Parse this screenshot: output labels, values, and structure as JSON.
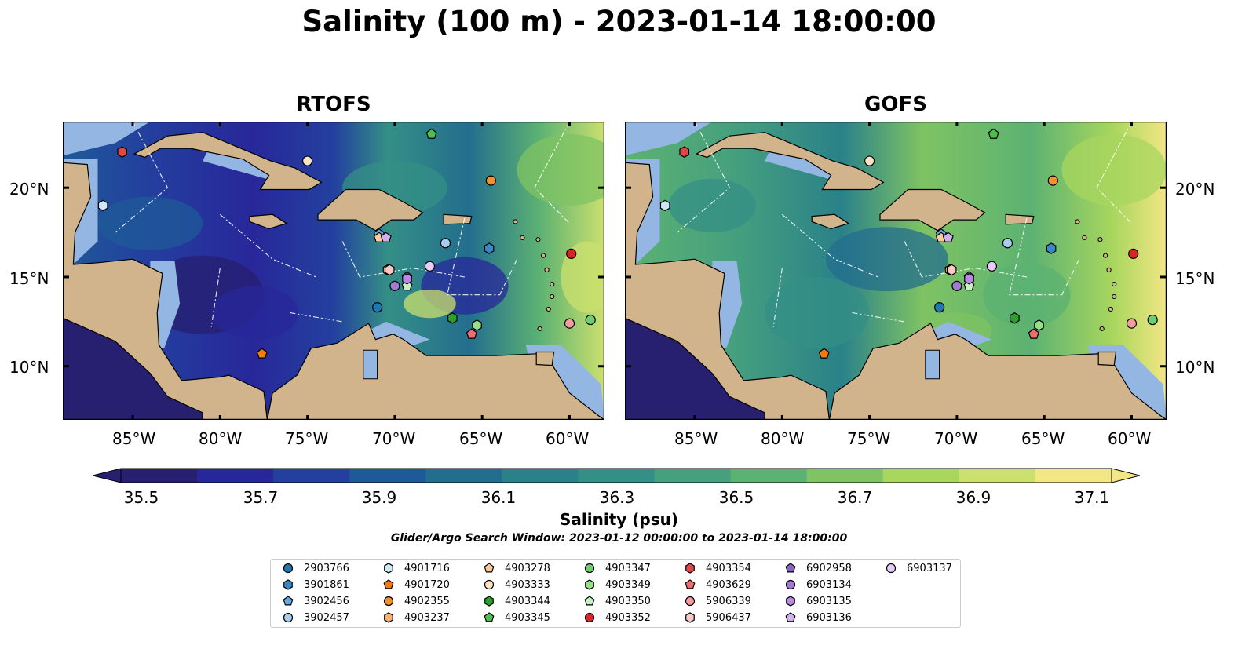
{
  "title": "Salinity (100 m) - 2023-01-14 18:00:00",
  "panels": [
    {
      "title": "RTOFS",
      "style": "rtofs"
    },
    {
      "title": "GOFS",
      "style": "gofs"
    }
  ],
  "lat_labels": [
    "20°N",
    "15°N",
    "10°N"
  ],
  "lon_labels": [
    "85°W",
    "80°W",
    "75°W",
    "70°W",
    "65°W",
    "60°W"
  ],
  "colorbar": {
    "label": "Salinity (psu)",
    "ticks": [
      "35.5",
      "35.7",
      "35.9",
      "36.1",
      "36.3",
      "36.5",
      "36.7",
      "36.9",
      "37.1"
    ],
    "colors": [
      "#271f6f",
      "#28279a",
      "#23409e",
      "#1f5a98",
      "#236e8e",
      "#2a8189",
      "#348f86",
      "#46a07e",
      "#5cb272",
      "#7fc363",
      "#a8d65e",
      "#cbe06e",
      "#f3e685"
    ],
    "extend": "both"
  },
  "search_window": "Glider/Argo Search Window: 2023-01-12 00:00:00 to 2023-01-14 18:00:00",
  "map_colors": {
    "land": "#d2b48c",
    "shallow": "#94b6e2",
    "deep_pacific": "#271f6f"
  },
  "floats": [
    {
      "id": "2903766",
      "marker": "circle",
      "color": "#1f77b4",
      "lon": -71.0,
      "lat": 13.3
    },
    {
      "id": "3901861",
      "marker": "hexagon",
      "color": "#3a87c8",
      "lon": -64.6,
      "lat": 16.6
    },
    {
      "id": "3902456",
      "marker": "pentagon",
      "color": "#64a9e0",
      "lon": -70.9,
      "lat": 17.4
    },
    {
      "id": "3902457",
      "marker": "circle",
      "color": "#a6cdf0",
      "lon": -67.1,
      "lat": 16.9
    },
    {
      "id": "4901716",
      "marker": "hexagon",
      "color": "#cfe8f8",
      "lon": -86.7,
      "lat": 19.0
    },
    {
      "id": "4901720",
      "marker": "pentagon",
      "color": "#f07b10",
      "lon": -77.6,
      "lat": 10.7
    },
    {
      "id": "4902355",
      "marker": "circle",
      "color": "#f5922f",
      "lon": -64.5,
      "lat": 20.4
    },
    {
      "id": "4903237",
      "marker": "hexagon",
      "color": "#f8b173",
      "lon": -70.4,
      "lat": 15.4
    },
    {
      "id": "4903278",
      "marker": "pentagon",
      "color": "#fbc99a",
      "lon": -70.9,
      "lat": 17.2
    },
    {
      "id": "4903333",
      "marker": "circle",
      "color": "#fde3c5",
      "lon": -75.0,
      "lat": 21.5
    },
    {
      "id": "4903344",
      "marker": "hexagon",
      "color": "#2ca02c",
      "lon": -66.7,
      "lat": 12.7
    },
    {
      "id": "4903345",
      "marker": "pentagon",
      "color": "#4fbe4f",
      "lon": -67.9,
      "lat": 23.0
    },
    {
      "id": "4903347",
      "marker": "circle",
      "color": "#6fce6f",
      "lon": -58.8,
      "lat": 12.6
    },
    {
      "id": "4903349",
      "marker": "hexagon",
      "color": "#98df8a",
      "lon": -65.3,
      "lat": 12.3
    },
    {
      "id": "4903350",
      "marker": "pentagon",
      "color": "#c5f2c0",
      "lon": -69.3,
      "lat": 14.5
    },
    {
      "id": "4903352",
      "marker": "circle",
      "color": "#d62728",
      "lon": -59.9,
      "lat": 16.3
    },
    {
      "id": "4903354",
      "marker": "hexagon",
      "color": "#e04848",
      "lon": -85.6,
      "lat": 22.0
    },
    {
      "id": "4903629",
      "marker": "pentagon",
      "color": "#ec6f6f",
      "lon": -65.6,
      "lat": 11.8
    },
    {
      "id": "5906339",
      "marker": "circle",
      "color": "#f49b9b",
      "lon": -60.0,
      "lat": 12.4
    },
    {
      "id": "5906437",
      "marker": "hexagon",
      "color": "#fbc8c8",
      "lon": -70.3,
      "lat": 15.4
    },
    {
      "id": "6902958",
      "marker": "pentagon",
      "color": "#8b62c4",
      "lon": -69.3,
      "lat": 15.0
    },
    {
      "id": "6903134",
      "marker": "circle",
      "color": "#a07ad6",
      "lon": -70.0,
      "lat": 14.5
    },
    {
      "id": "6903135",
      "marker": "hexagon",
      "color": "#b68be0",
      "lon": -69.3,
      "lat": 14.9
    },
    {
      "id": "6903136",
      "marker": "pentagon",
      "color": "#d2b0f0",
      "lon": -70.5,
      "lat": 17.2
    },
    {
      "id": "6903137",
      "marker": "circle",
      "color": "#e6cdf8",
      "lon": -68.0,
      "lat": 15.6
    }
  ]
}
